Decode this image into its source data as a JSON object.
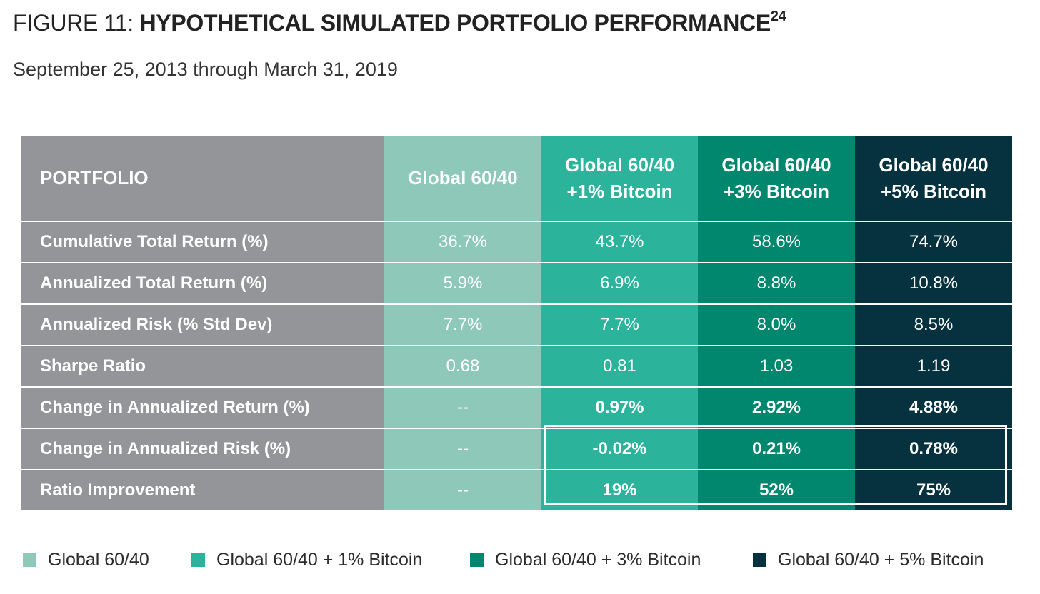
{
  "figure": {
    "prefix": "FIGURE 11:",
    "title": "HYPOTHETICAL SIMULATED PORTFOLIO PERFORMANCE",
    "footnote": "24",
    "subtitle": "September 25, 2013 through March 31, 2019"
  },
  "colors": {
    "label_column": "#939598",
    "global_60_40": "#8dc8b8",
    "plus_1_bitcoin": "#2bb39b",
    "plus_3_bitcoin": "#00876e",
    "plus_5_bitcoin": "#06323f"
  },
  "chart_data": {
    "type": "table",
    "title": "HYPOTHETICAL SIMULATED PORTFOLIO PERFORMANCE",
    "subtitle": "September 25, 2013 through March 31, 2019",
    "header": {
      "label": "PORTFOLIO",
      "columns": [
        {
          "line1": "Global 60/40",
          "line2": ""
        },
        {
          "line1": "Global 60/40",
          "line2": "+1% Bitcoin"
        },
        {
          "line1": "Global 60/40",
          "line2": "+3% Bitcoin"
        },
        {
          "line1": "Global 60/40",
          "line2": "+5% Bitcoin"
        }
      ]
    },
    "rows": [
      {
        "label": "Cumulative Total Return (%)",
        "values": [
          "36.7%",
          "43.7%",
          "58.6%",
          "74.7%"
        ]
      },
      {
        "label": "Annualized Total Return (%)",
        "values": [
          "5.9%",
          "6.9%",
          "8.8%",
          "10.8%"
        ]
      },
      {
        "label": "Annualized Risk (% Std Dev)",
        "values": [
          "7.7%",
          "7.7%",
          "8.0%",
          "8.5%"
        ]
      },
      {
        "label": "Sharpe Ratio",
        "values": [
          "0.68",
          "0.81",
          "1.03",
          "1.19"
        ]
      },
      {
        "label": "Change in Annualized Return (%)",
        "values": [
          "--",
          "0.97%",
          "2.92%",
          "4.88%"
        ]
      },
      {
        "label": "Change in Annualized Risk (%)",
        "values": [
          "--",
          "-0.02%",
          "0.21%",
          "0.78%"
        ]
      },
      {
        "label": "Ratio Improvement",
        "values": [
          "--",
          "19%",
          "52%",
          "75%"
        ]
      }
    ],
    "legend": [
      "Global 60/40",
      "Global 60/40 + 1% Bitcoin",
      "Global 60/40 + 3% Bitcoin",
      "Global 60/40 + 5% Bitcoin"
    ]
  }
}
